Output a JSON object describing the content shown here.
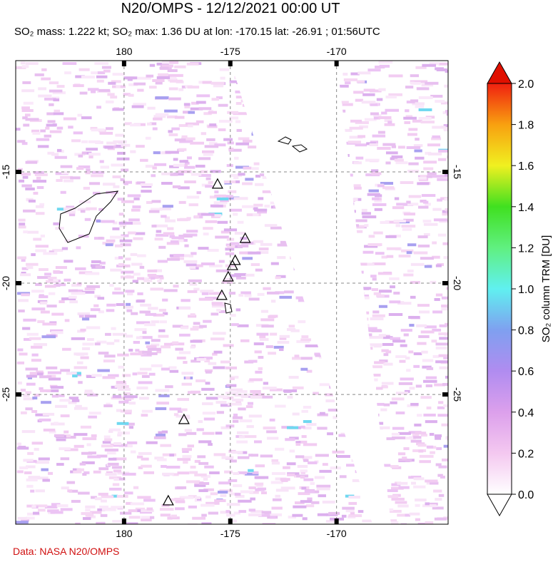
{
  "chart_data": {
    "type": "map",
    "title": "N20/OMPS - 12/12/2021 00:00 UT",
    "subtitle": "SO₂ mass: 1.222 kt; SO₂ max: 1.36 DU at lon: -170.15 lat: -26.91 ; 01:56UTC",
    "xlim": [
      174.9,
      195.25
    ],
    "ylim": [
      -30.83,
      -10
    ],
    "xticks": [
      {
        "value": 180,
        "label": "180"
      },
      {
        "value": 185,
        "label": "-175"
      },
      {
        "value": 190,
        "label": "-170"
      }
    ],
    "yticks": [
      -15,
      -20,
      -25
    ],
    "grid": true,
    "volcanoes": {
      "x": [
        184.4,
        185.7,
        185.23,
        185.1,
        184.9,
        184.6,
        182.82,
        182.08
      ],
      "y": [
        -15.54,
        -17.98,
        -18.97,
        -19.2,
        -19.71,
        -20.54,
        -26.12,
        -29.77
      ]
    },
    "colorbar": {
      "label": "SO₂ column TRM [DU]",
      "lim": [
        0,
        2
      ],
      "ticks": [
        {
          "value": 0,
          "label": "0.0"
        },
        {
          "value": 0.2,
          "label": "0.2"
        },
        {
          "value": 0.4,
          "label": "0.4"
        },
        {
          "value": 0.6,
          "label": "0.6"
        },
        {
          "value": 0.8,
          "label": "0.8"
        },
        {
          "value": 1,
          "label": "1.0"
        },
        {
          "value": 1.2,
          "label": "1.2"
        },
        {
          "value": 1.4,
          "label": "1.4"
        },
        {
          "value": 1.6,
          "label": "1.6"
        },
        {
          "value": 1.8,
          "label": "1.8"
        },
        {
          "value": 2,
          "label": "2.0"
        }
      ],
      "colors": [
        "#ffffff",
        "#f4c8f0",
        "#dca0ec",
        "#b08cf0",
        "#7fa0f0",
        "#60f0f0",
        "#60f080",
        "#40e020",
        "#f0f020",
        "#f8a010",
        "#f02010"
      ]
    },
    "source": "Data: NASA N20/OMPS"
  }
}
